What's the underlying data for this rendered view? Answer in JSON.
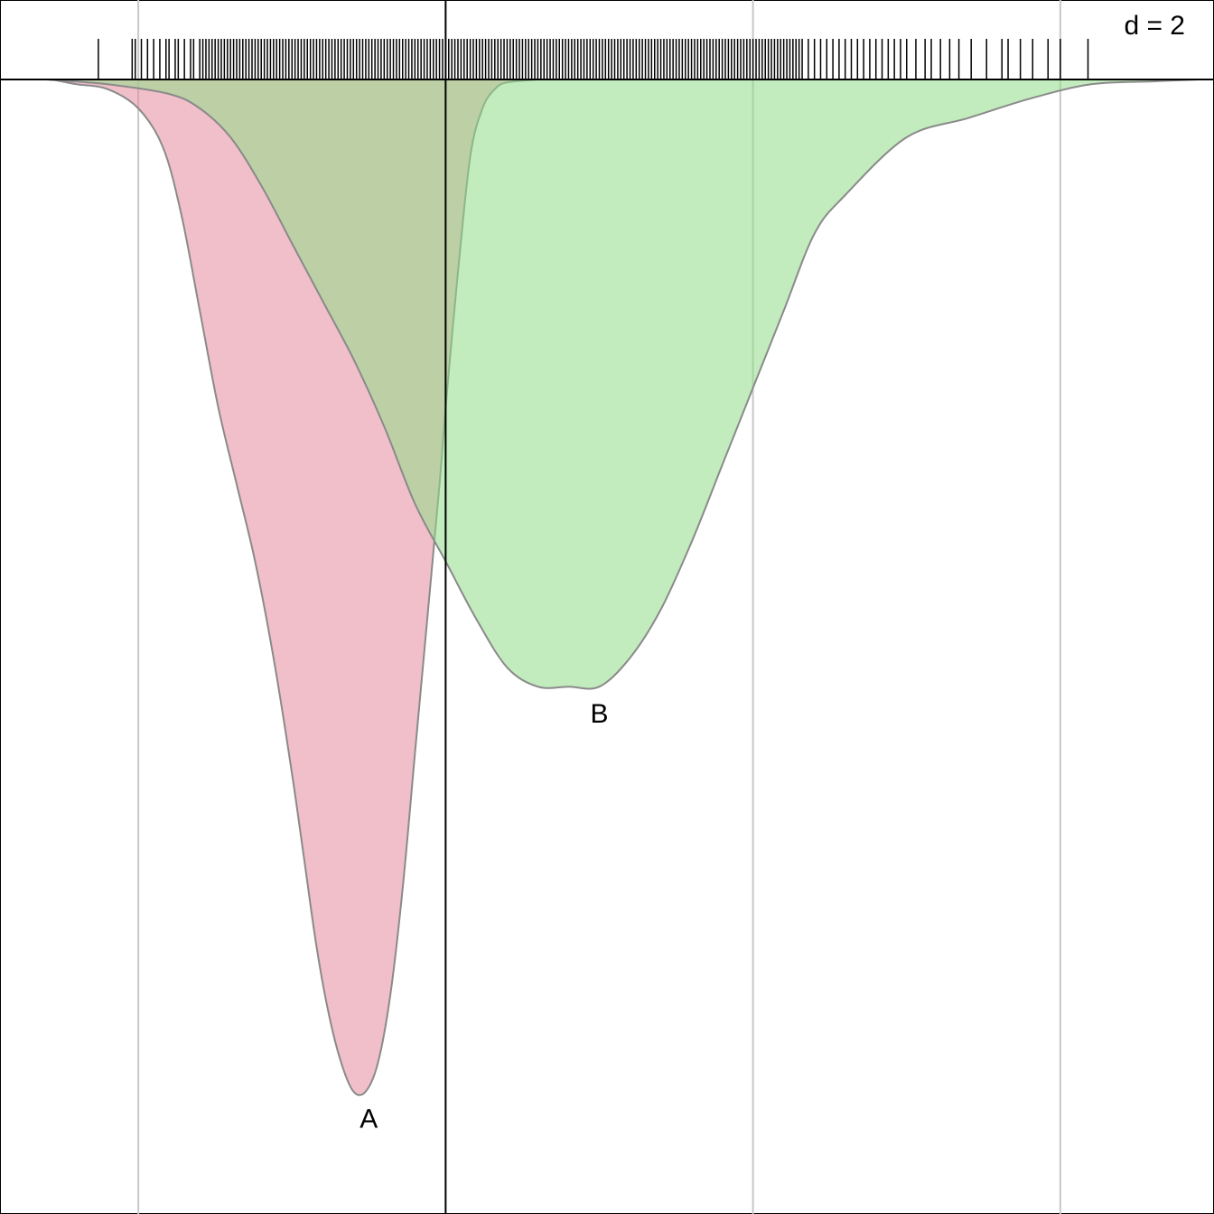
{
  "chart_data": {
    "type": "area",
    "title": "",
    "xlabel": "",
    "ylabel": "",
    "grid": true,
    "annotation": "d = 2",
    "xlim": [
      -1.45,
      2.5
    ],
    "ylim": [
      0,
      1.0
    ],
    "x_gridlines": [
      -1,
      0,
      1,
      2
    ],
    "baseline_axis_x": 0,
    "series": [
      {
        "name": "A",
        "color": "#e68a9c",
        "label_x": -0.25,
        "x": [
          -1.28,
          -1.2,
          -1.1,
          -1.0,
          -0.92,
          -0.86,
          -0.8,
          -0.74,
          -0.68,
          -0.62,
          -0.56,
          -0.5,
          -0.46,
          -0.42,
          -0.38,
          -0.34,
          -0.3,
          -0.26,
          -0.22,
          -0.18,
          -0.14,
          -0.1,
          -0.06,
          -0.02,
          0.0,
          0.04,
          0.08,
          0.12,
          0.16,
          0.2,
          0.3
        ],
        "y": [
          0.0,
          0.005,
          0.01,
          0.03,
          0.07,
          0.14,
          0.24,
          0.34,
          0.42,
          0.5,
          0.6,
          0.72,
          0.81,
          0.9,
          0.97,
          1.02,
          1.05,
          1.05,
          1.02,
          0.95,
          0.84,
          0.7,
          0.56,
          0.42,
          0.34,
          0.2,
          0.08,
          0.03,
          0.01,
          0.003,
          0.0
        ]
      },
      {
        "name": "B",
        "color": "#8fdc86",
        "label_x": 0.5,
        "x": [
          -1.3,
          -1.1,
          -0.9,
          -0.8,
          -0.7,
          -0.6,
          -0.5,
          -0.4,
          -0.3,
          -0.2,
          -0.1,
          0.0,
          0.1,
          0.2,
          0.3,
          0.4,
          0.5,
          0.6,
          0.7,
          0.8,
          0.9,
          1.0,
          1.1,
          1.2,
          1.3,
          1.5,
          1.7,
          1.9,
          2.1,
          2.3,
          2.45
        ],
        "y": [
          0.0,
          0.005,
          0.015,
          0.03,
          0.06,
          0.11,
          0.17,
          0.23,
          0.29,
          0.36,
          0.44,
          0.5,
          0.56,
          0.61,
          0.63,
          0.63,
          0.63,
          0.6,
          0.55,
          0.48,
          0.4,
          0.32,
          0.24,
          0.16,
          0.12,
          0.06,
          0.04,
          0.02,
          0.005,
          0.002,
          0.0
        ]
      }
    ],
    "rug_x": [
      -1.13,
      -1.02,
      -1.01,
      -0.99,
      -0.97,
      -0.95,
      -0.93,
      -0.91,
      -0.9,
      -0.88,
      -0.87,
      -0.85,
      -0.83,
      -0.82,
      -0.8,
      -0.79,
      -0.78,
      -0.77,
      -0.76,
      -0.75,
      -0.74,
      -0.73,
      -0.72,
      -0.71,
      -0.7,
      -0.69,
      -0.68,
      -0.67,
      -0.66,
      -0.65,
      -0.64,
      -0.63,
      -0.62,
      -0.61,
      -0.6,
      -0.59,
      -0.58,
      -0.57,
      -0.56,
      -0.55,
      -0.54,
      -0.53,
      -0.52,
      -0.51,
      -0.5,
      -0.49,
      -0.48,
      -0.47,
      -0.46,
      -0.45,
      -0.44,
      -0.43,
      -0.42,
      -0.41,
      -0.4,
      -0.39,
      -0.38,
      -0.37,
      -0.36,
      -0.35,
      -0.34,
      -0.33,
      -0.32,
      -0.31,
      -0.3,
      -0.29,
      -0.28,
      -0.27,
      -0.26,
      -0.25,
      -0.24,
      -0.23,
      -0.22,
      -0.21,
      -0.2,
      -0.19,
      -0.18,
      -0.17,
      -0.16,
      -0.15,
      -0.14,
      -0.13,
      -0.12,
      -0.11,
      -0.1,
      -0.09,
      -0.08,
      -0.07,
      -0.06,
      -0.05,
      -0.04,
      -0.03,
      -0.02,
      -0.01,
      0.0,
      0.01,
      0.02,
      0.03,
      0.04,
      0.05,
      0.06,
      0.07,
      0.08,
      0.09,
      0.1,
      0.11,
      0.12,
      0.13,
      0.14,
      0.15,
      0.16,
      0.17,
      0.18,
      0.19,
      0.2,
      0.21,
      0.22,
      0.23,
      0.24,
      0.25,
      0.26,
      0.27,
      0.28,
      0.29,
      0.3,
      0.31,
      0.32,
      0.33,
      0.34,
      0.35,
      0.36,
      0.37,
      0.38,
      0.39,
      0.4,
      0.41,
      0.42,
      0.43,
      0.44,
      0.45,
      0.46,
      0.47,
      0.48,
      0.49,
      0.5,
      0.51,
      0.52,
      0.53,
      0.54,
      0.55,
      0.56,
      0.57,
      0.58,
      0.59,
      0.6,
      0.61,
      0.62,
      0.63,
      0.64,
      0.65,
      0.66,
      0.67,
      0.68,
      0.69,
      0.7,
      0.71,
      0.72,
      0.73,
      0.74,
      0.75,
      0.76,
      0.77,
      0.78,
      0.79,
      0.8,
      0.81,
      0.82,
      0.83,
      0.84,
      0.85,
      0.86,
      0.87,
      0.88,
      0.89,
      0.9,
      0.91,
      0.92,
      0.93,
      0.94,
      0.95,
      0.96,
      0.97,
      0.98,
      0.99,
      1.0,
      1.01,
      1.02,
      1.03,
      1.04,
      1.05,
      1.06,
      1.07,
      1.08,
      1.09,
      1.1,
      1.11,
      1.12,
      1.13,
      1.14,
      1.15,
      1.16,
      1.18,
      1.2,
      1.22,
      1.24,
      1.26,
      1.28,
      1.3,
      1.32,
      1.34,
      1.36,
      1.38,
      1.4,
      1.42,
      1.44,
      1.46,
      1.48,
      1.5,
      1.53,
      1.56,
      1.58,
      1.61,
      1.64,
      1.67,
      1.71,
      1.76,
      1.81,
      1.83,
      1.87,
      1.91,
      1.96,
      2.0,
      2.09
    ]
  }
}
